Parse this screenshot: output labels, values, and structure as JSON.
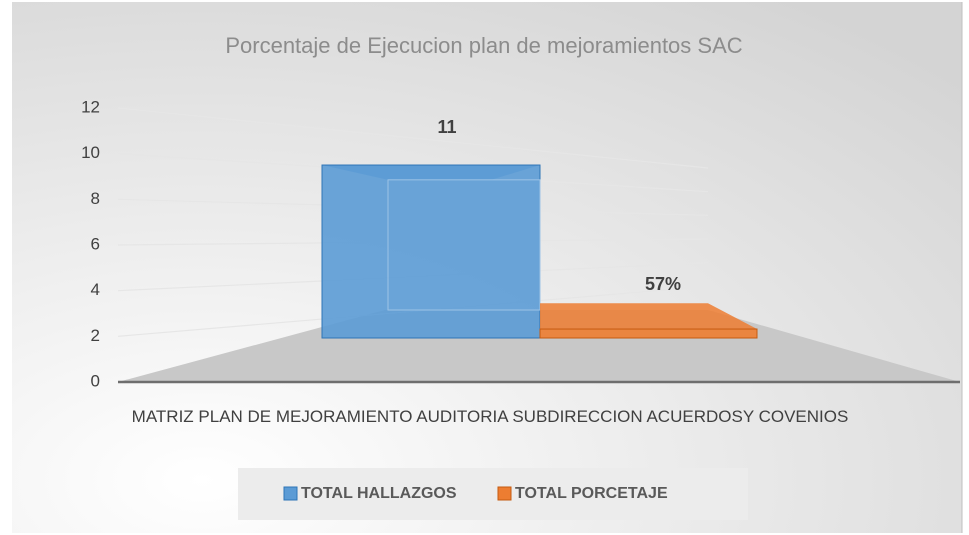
{
  "chart_data": {
    "type": "bar",
    "title": "Porcentaje de Ejecucion plan de mejoramientos SAC",
    "categories": [
      "MATRIZ PLAN DE MEJORAMIENTO AUDITORIA SUBDIRECCION ACUERDOSY COVENIOS"
    ],
    "series": [
      {
        "name": "TOTAL HALLAZGOS",
        "color": "#5b9bd5",
        "values": [
          11
        ],
        "value_labels": [
          "11"
        ]
      },
      {
        "name": "TOTAL PORCETAJE",
        "color": "#ed7d31",
        "values": [
          0.57
        ],
        "value_labels": [
          "57%"
        ]
      }
    ],
    "ylim": [
      0,
      12
    ],
    "yticks": [
      0,
      2,
      4,
      6,
      8,
      10,
      12
    ],
    "grid": true,
    "legend": "bottom"
  }
}
